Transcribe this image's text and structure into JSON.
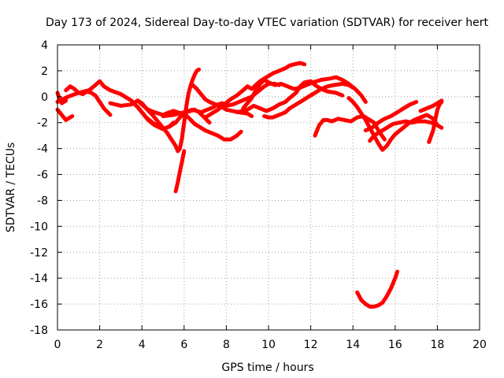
{
  "chart_data": {
    "type": "scatter",
    "title": "Day 173 of 2024, Sidereal Day-to-day VTEC variation (SDTVAR) for receiver hert",
    "xlabel": "GPS time / hours",
    "ylabel": "SDTVAR / TECUs",
    "xlim": [
      0,
      20
    ],
    "ylim": [
      -18,
      4
    ],
    "xticks": [
      0,
      2,
      4,
      6,
      8,
      10,
      12,
      14,
      16,
      18,
      20
    ],
    "yticks": [
      -18,
      -16,
      -14,
      -12,
      -10,
      -8,
      -6,
      -4,
      -2,
      0,
      2,
      4
    ],
    "grid": true,
    "marker_color": "#ff0000",
    "series": [
      {
        "name": "s1",
        "x": [
          0.0,
          0.2,
          0.4,
          0.6,
          0.7
        ],
        "y": [
          -1.0,
          -1.4,
          -1.8,
          -1.6,
          -1.5
        ]
      },
      {
        "name": "s2",
        "x": [
          0.0,
          0.1,
          0.2,
          0.4
        ],
        "y": [
          0.3,
          -0.2,
          -0.5,
          -0.3
        ]
      },
      {
        "name": "s3",
        "x": [
          0.4,
          0.6,
          0.8,
          1.0,
          1.2,
          1.4,
          1.6,
          1.8,
          2.0,
          2.2,
          2.5
        ],
        "y": [
          0.5,
          0.8,
          0.6,
          0.3,
          0.2,
          0.4,
          0.3,
          0.1,
          -0.4,
          -0.9,
          -1.4
        ]
      },
      {
        "name": "s4",
        "x": [
          0.0,
          0.5,
          1.0,
          1.5,
          1.8,
          2.0,
          2.2,
          2.5,
          3.0,
          3.5,
          3.8,
          4.0,
          4.3,
          4.6,
          5.0,
          5.3,
          5.5
        ],
        "y": [
          -0.4,
          0.0,
          0.3,
          0.5,
          0.9,
          1.2,
          0.8,
          0.5,
          0.2,
          -0.3,
          -0.8,
          -1.2,
          -1.8,
          -2.2,
          -2.5,
          -2.3,
          -2.0
        ]
      },
      {
        "name": "s5",
        "x": [
          2.5,
          3.0,
          3.5,
          3.8,
          4.0,
          4.3,
          4.6,
          5.0,
          5.3,
          5.5,
          5.7,
          5.9,
          6.1,
          6.3,
          6.5,
          6.7,
          6.9,
          7.2
        ],
        "y": [
          -0.5,
          -0.7,
          -0.6,
          -0.3,
          -0.6,
          -1.0,
          -1.2,
          -1.4,
          -1.2,
          -1.1,
          -1.2,
          -1.3,
          -1.2,
          -1.1,
          -1.0,
          -1.2,
          -1.5,
          -2.0
        ]
      },
      {
        "name": "s6",
        "x": [
          3.6,
          3.8,
          4.0,
          4.2,
          4.5,
          4.8,
          5.0,
          5.3,
          5.6,
          5.8,
          6.0,
          6.2,
          6.5,
          6.8,
          7.0,
          7.3,
          7.6,
          7.9,
          8.2,
          8.5,
          8.7
        ],
        "y": [
          -0.5,
          -0.8,
          -1.2,
          -1.6,
          -2.0,
          -2.3,
          -2.5,
          -2.3,
          -2.0,
          -1.6,
          -1.3,
          -1.6,
          -2.1,
          -2.4,
          -2.6,
          -2.8,
          -3.0,
          -3.3,
          -3.3,
          -3.0,
          -2.7
        ]
      },
      {
        "name": "s7",
        "x": [
          3.8,
          4.0,
          4.2,
          4.5,
          4.8,
          5.0,
          5.2,
          5.4,
          5.6,
          5.7,
          5.8,
          5.9,
          6.0,
          6.1,
          6.2,
          6.3,
          6.4,
          6.5,
          6.6,
          6.7
        ],
        "y": [
          -0.3,
          -0.5,
          -0.9,
          -1.4,
          -2.0,
          -2.4,
          -2.8,
          -3.3,
          -3.8,
          -4.2,
          -4.0,
          -3.2,
          -2.0,
          -0.8,
          0.2,
          0.8,
          1.3,
          1.7,
          2.0,
          2.1
        ]
      },
      {
        "name": "s8",
        "x": [
          5.6,
          5.7,
          5.8,
          5.9,
          6.0
        ],
        "y": [
          -7.3,
          -6.6,
          -5.8,
          -5.0,
          -4.2
        ]
      },
      {
        "name": "s9",
        "x": [
          6.4,
          6.6,
          6.8,
          7.0,
          7.2,
          7.5,
          7.8,
          8.0,
          8.3,
          8.6,
          9.0,
          9.2
        ],
        "y": [
          0.9,
          0.6,
          0.2,
          -0.2,
          -0.4,
          -0.6,
          -0.8,
          -1.0,
          -1.1,
          -1.2,
          -1.3,
          -1.5
        ]
      },
      {
        "name": "s10",
        "x": [
          5.0,
          5.5,
          6.0,
          6.4,
          6.8,
          7.1,
          7.4,
          7.6,
          7.8,
          8.0,
          8.3,
          8.6,
          8.9,
          9.2,
          9.5,
          9.8,
          10.0,
          10.3,
          10.5
        ],
        "y": [
          -1.5,
          -1.4,
          -1.2,
          -1.0,
          -1.2,
          -1.0,
          -0.8,
          -0.6,
          -0.5,
          -0.7,
          -0.6,
          -0.4,
          -0.2,
          0.0,
          0.4,
          0.8,
          1.0,
          1.0,
          0.9
        ]
      },
      {
        "name": "s11",
        "x": [
          7.0,
          7.3,
          7.6,
          7.9,
          8.2,
          8.5,
          8.8,
          9.0,
          9.2,
          9.4,
          9.6,
          9.8,
          10.0,
          10.2,
          10.5,
          10.8,
          11.0,
          11.2,
          11.5,
          11.7
        ],
        "y": [
          -1.6,
          -1.3,
          -1.0,
          -0.6,
          -0.2,
          0.1,
          0.5,
          0.8,
          0.6,
          0.9,
          1.2,
          1.4,
          1.6,
          1.8,
          2.0,
          2.2,
          2.4,
          2.5,
          2.6,
          2.5
        ]
      },
      {
        "name": "s12",
        "x": [
          8.5,
          9.0,
          9.3,
          9.6,
          9.9,
          10.2,
          10.5,
          10.8,
          11.0,
          11.3,
          11.5,
          11.7,
          12.0,
          12.2,
          12.5,
          12.8,
          13.2,
          13.5
        ],
        "y": [
          -1.2,
          -1.0,
          -0.7,
          -0.9,
          -1.1,
          -0.9,
          -0.6,
          -0.4,
          -0.1,
          0.3,
          0.8,
          1.1,
          1.2,
          0.9,
          0.6,
          0.4,
          0.3,
          0.1
        ]
      },
      {
        "name": "s13",
        "x": [
          8.8,
          9.0,
          9.2,
          9.4,
          9.6,
          9.8,
          10.0,
          10.3,
          10.6,
          10.9,
          11.2,
          11.5,
          11.8,
          12.1,
          12.5,
          12.9,
          13.2,
          13.5,
          13.8,
          14.1,
          14.4,
          14.6
        ],
        "y": [
          -0.9,
          -0.5,
          -0.1,
          0.5,
          1.0,
          1.3,
          1.1,
          0.9,
          1.0,
          0.8,
          0.6,
          0.7,
          0.9,
          1.1,
          1.3,
          1.4,
          1.5,
          1.3,
          1.0,
          0.6,
          0.1,
          -0.4
        ]
      },
      {
        "name": "s14",
        "x": [
          9.8,
          10.0,
          10.2,
          10.5,
          10.8,
          11.0,
          11.3,
          11.6,
          11.9,
          12.2,
          12.5,
          12.8,
          13.1,
          13.5,
          13.8,
          14.0
        ],
        "y": [
          -1.5,
          -1.6,
          -1.6,
          -1.4,
          -1.2,
          -0.9,
          -0.6,
          -0.3,
          0.0,
          0.3,
          0.6,
          0.8,
          0.9,
          1.0,
          0.9,
          0.7
        ]
      },
      {
        "name": "s15",
        "x": [
          12.2,
          12.4,
          12.6,
          12.8,
          13.0,
          13.3,
          13.6,
          13.9,
          14.2,
          14.5,
          14.7,
          15.0,
          15.2,
          15.5
        ],
        "y": [
          -3.0,
          -2.2,
          -1.8,
          -1.8,
          -1.9,
          -1.7,
          -1.8,
          -1.9,
          -1.6,
          -1.5,
          -1.7,
          -2.0,
          -2.6,
          -3.3
        ]
      },
      {
        "name": "s16",
        "x": [
          13.8,
          14.0,
          14.2,
          14.4,
          14.6,
          14.8,
          15.0,
          15.2,
          15.4,
          15.6,
          15.8,
          16.0,
          16.3,
          16.6,
          16.9,
          17.2,
          17.5,
          17.8,
          18.0
        ],
        "y": [
          -0.1,
          -0.4,
          -0.8,
          -1.3,
          -1.8,
          -2.4,
          -3.0,
          -3.6,
          -4.1,
          -3.8,
          -3.3,
          -2.9,
          -2.5,
          -2.1,
          -1.8,
          -1.6,
          -1.4,
          -1.7,
          -2.2
        ]
      },
      {
        "name": "s17",
        "x": [
          14.8,
          15.0,
          15.3,
          15.6,
          15.9,
          16.2,
          16.5,
          16.8,
          17.1,
          17.4,
          17.7,
          18.0,
          18.2
        ],
        "y": [
          -3.4,
          -3.0,
          -2.7,
          -2.4,
          -2.1,
          -2.0,
          -1.9,
          -2.0,
          -1.9,
          -1.9,
          -2.0,
          -2.2,
          -2.4
        ]
      },
      {
        "name": "s18",
        "x": [
          14.6,
          14.9,
          15.2,
          15.5,
          15.8,
          16.1,
          16.4,
          16.7,
          17.0
        ],
        "y": [
          -2.6,
          -2.4,
          -2.0,
          -1.7,
          -1.5,
          -1.2,
          -0.9,
          -0.6,
          -0.4
        ]
      },
      {
        "name": "s19",
        "x": [
          17.2,
          17.5,
          17.8,
          18.0,
          18.2
        ],
        "y": [
          -1.1,
          -0.9,
          -0.7,
          -0.5,
          -0.3
        ]
      },
      {
        "name": "s20",
        "x": [
          17.6,
          17.8,
          17.9,
          18.0,
          18.1,
          18.2
        ],
        "y": [
          -3.5,
          -2.6,
          -1.8,
          -1.0,
          -0.6,
          -0.4
        ]
      },
      {
        "name": "s21",
        "x": [
          14.2,
          14.4,
          14.6,
          14.8,
          15.0,
          15.2,
          15.4,
          15.6,
          15.8,
          16.0,
          16.1
        ],
        "y": [
          -15.1,
          -15.7,
          -16.0,
          -16.2,
          -16.2,
          -16.1,
          -15.9,
          -15.4,
          -14.8,
          -14.0,
          -13.5
        ]
      }
    ]
  }
}
